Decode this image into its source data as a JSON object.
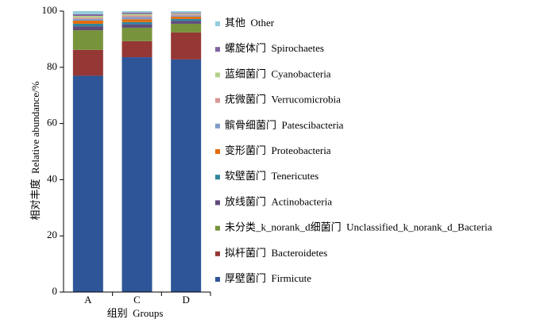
{
  "chart_data": {
    "type": "stacked_bar",
    "categories": [
      "A",
      "C",
      "D"
    ],
    "ylabel": "相对丰度  Relative abundance/%",
    "xlabel": "组别  Groups",
    "ylim": [
      0,
      100
    ],
    "yticks": [
      0,
      20,
      40,
      60,
      80,
      100
    ],
    "legend": "right",
    "series": [
      {
        "name": "厚壁菌门  Firmicute",
        "color": "#2e5597",
        "values": [
          77.0,
          83.6,
          82.8
        ]
      },
      {
        "name": "拟杆菌门  Bacteroidetes",
        "color": "#953735",
        "values": [
          9.2,
          5.7,
          9.6
        ]
      },
      {
        "name": "未分类_k_norank_d细菌门  Unclassified_k_norank_d_Bacteria",
        "color": "#77933c",
        "values": [
          7.0,
          4.8,
          3.1
        ]
      },
      {
        "name": "放线菌门  Actinobacteria",
        "color": "#604a7b",
        "values": [
          1.4,
          1.2,
          1.0
        ]
      },
      {
        "name": "软壁菌门  Tenericutes",
        "color": "#31859c",
        "values": [
          0.9,
          0.8,
          0.7
        ]
      },
      {
        "name": "变形菌门  Proteobacteria",
        "color": "#e46c0a",
        "values": [
          1.1,
          1.0,
          0.8
        ]
      },
      {
        "name": "髌骨细菌门  Patescibacteria",
        "color": "#7f9dc8",
        "values": [
          0.6,
          0.8,
          0.5
        ]
      },
      {
        "name": "疣微菌门  Verrucomicrobia",
        "color": "#d99694",
        "values": [
          0.5,
          0.6,
          0.4
        ]
      },
      {
        "name": "蓝细菌门  Cyanobacteria",
        "color": "#b3cf8a",
        "values": [
          0.6,
          0.5,
          0.3
        ]
      },
      {
        "name": "螺旋体门  Spirochaetes",
        "color": "#8064a2",
        "values": [
          0.6,
          0.5,
          0.3
        ]
      },
      {
        "name": "其他  Other",
        "color": "#93cddd",
        "values": [
          1.1,
          0.5,
          0.5
        ]
      }
    ]
  }
}
